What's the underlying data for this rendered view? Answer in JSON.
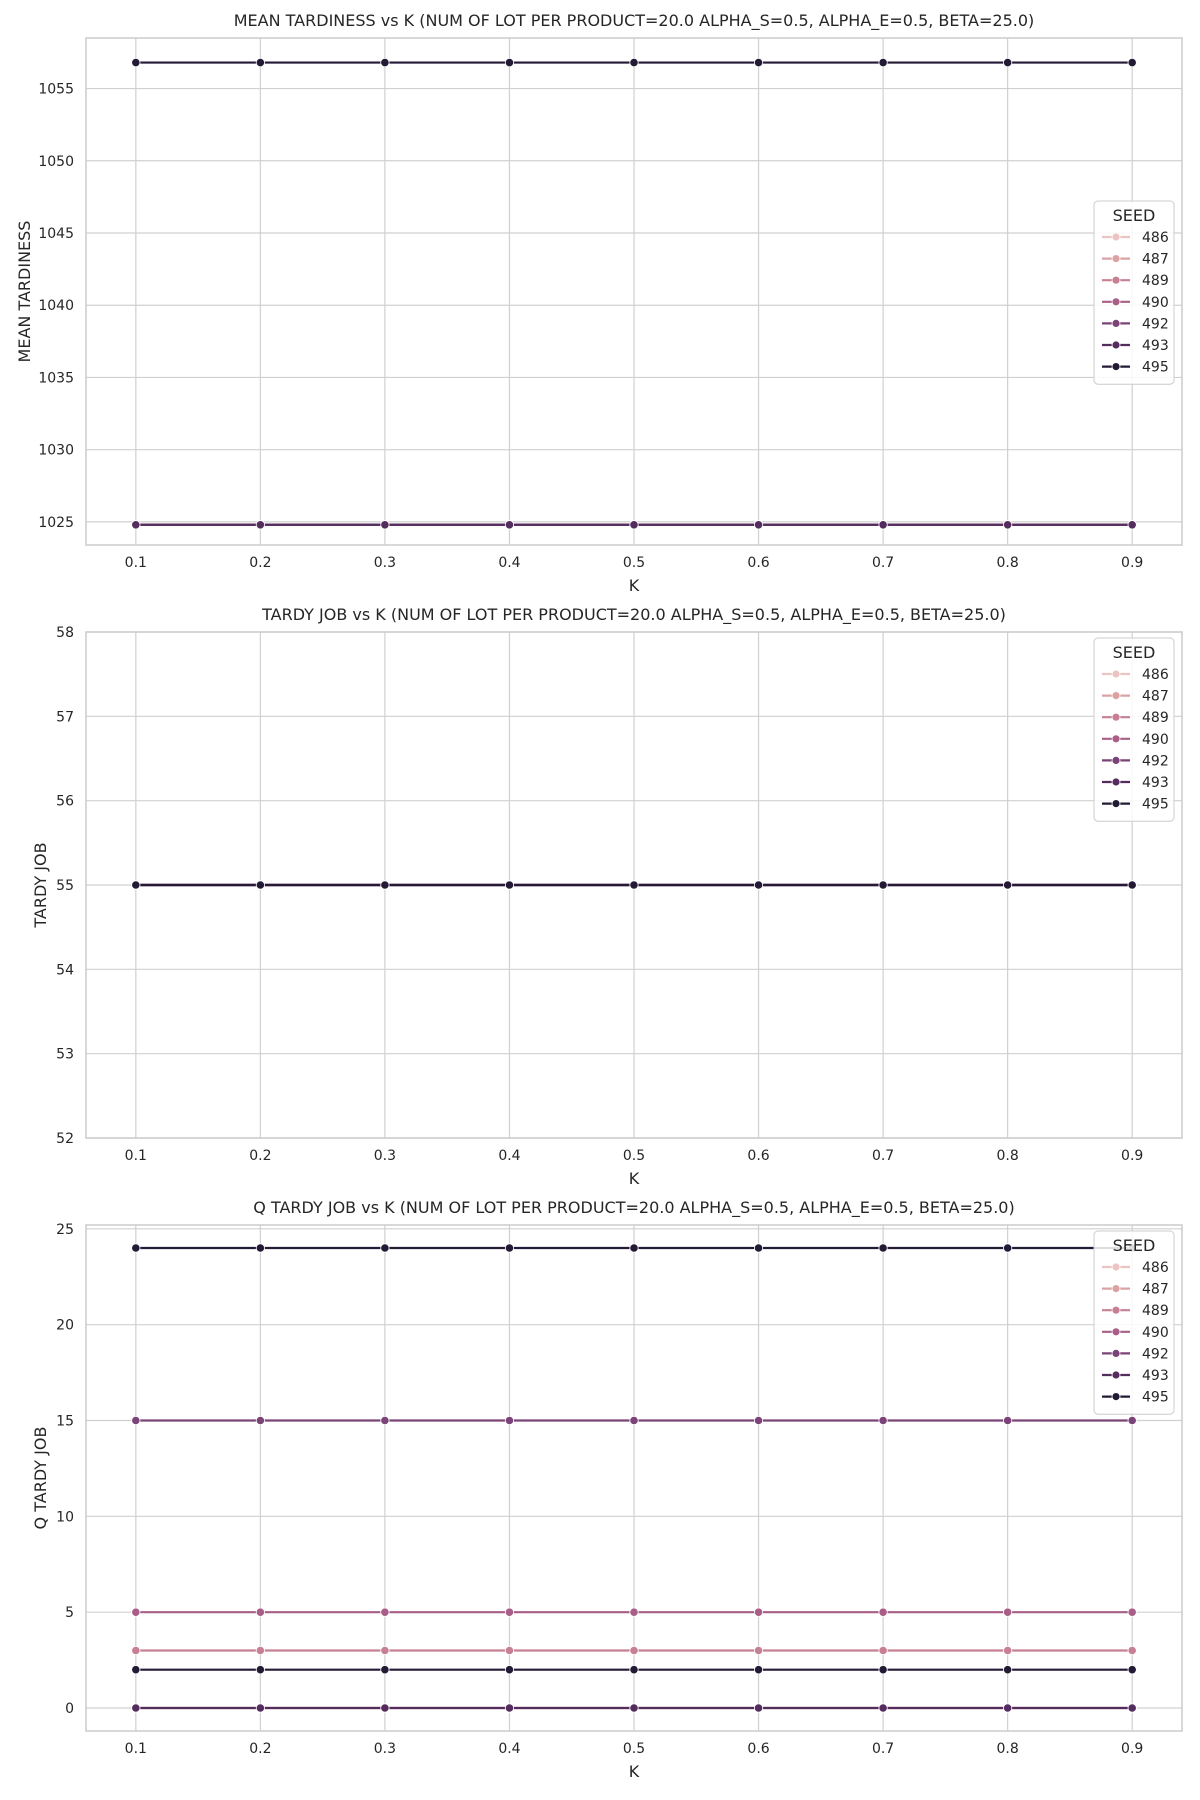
{
  "colors": {
    "background": "#ffffff",
    "grid": "#d0d0d0",
    "spine": "#cccccc",
    "text": "#262626",
    "seeds": {
      "486": "#ecc5c2",
      "487": "#dba2a4",
      "489": "#c77f93",
      "490": "#a85e86",
      "492": "#7b4378",
      "493": "#552c5e",
      "495": "#231a36"
    }
  },
  "chart_data": [
    {
      "type": "line",
      "title": "MEAN TARDINESS vs K (NUM OF LOT PER PRODUCT=20.0 ALPHA_S=0.5, ALPHA_E=0.5, BETA=25.0)",
      "xlabel": "K",
      "ylabel": "MEAN TARDINESS",
      "x": [
        0.1,
        0.2,
        0.3,
        0.4,
        0.5,
        0.6,
        0.7,
        0.8,
        0.9
      ],
      "x_ticks": [
        "0.1",
        "0.2",
        "0.3",
        "0.4",
        "0.5",
        "0.6",
        "0.7",
        "0.8",
        "0.9"
      ],
      "y_ticks": [
        1025,
        1030,
        1035,
        1040,
        1045,
        1050,
        1055
      ],
      "ylim": [
        1023.4,
        1058.5
      ],
      "xlim": [
        0.06,
        0.94
      ],
      "grid": true,
      "legend": {
        "title": "SEED",
        "placement": "center-right"
      },
      "series": [
        {
          "name": "486",
          "values": [
            1024.8,
            1024.8,
            1024.8,
            1024.8,
            1024.8,
            1024.8,
            1024.8,
            1024.8,
            1024.8
          ]
        },
        {
          "name": "487",
          "values": [
            1024.8,
            1024.8,
            1024.8,
            1024.8,
            1024.8,
            1024.8,
            1024.8,
            1024.8,
            1024.8
          ]
        },
        {
          "name": "489",
          "values": [
            1024.8,
            1024.8,
            1024.8,
            1024.8,
            1024.8,
            1024.8,
            1024.8,
            1024.8,
            1024.8
          ]
        },
        {
          "name": "490",
          "values": [
            1024.8,
            1024.8,
            1024.8,
            1024.8,
            1024.8,
            1024.8,
            1024.8,
            1024.8,
            1024.8
          ]
        },
        {
          "name": "492",
          "values": [
            1024.8,
            1024.8,
            1024.8,
            1024.8,
            1024.8,
            1024.8,
            1024.8,
            1024.8,
            1024.8
          ]
        },
        {
          "name": "493",
          "values": [
            1024.8,
            1024.8,
            1024.8,
            1024.8,
            1024.8,
            1024.8,
            1024.8,
            1024.8,
            1024.8
          ]
        },
        {
          "name": "495",
          "values": [
            1056.8,
            1056.8,
            1056.8,
            1056.8,
            1056.8,
            1056.8,
            1056.8,
            1056.8,
            1056.8
          ]
        }
      ]
    },
    {
      "type": "line",
      "title": "TARDY JOB vs K (NUM OF LOT PER PRODUCT=20.0 ALPHA_S=0.5, ALPHA_E=0.5, BETA=25.0)",
      "xlabel": "K",
      "ylabel": "TARDY JOB",
      "x": [
        0.1,
        0.2,
        0.3,
        0.4,
        0.5,
        0.6,
        0.7,
        0.8,
        0.9
      ],
      "x_ticks": [
        "0.1",
        "0.2",
        "0.3",
        "0.4",
        "0.5",
        "0.6",
        "0.7",
        "0.8",
        "0.9"
      ],
      "y_ticks": [
        52,
        53,
        54,
        55,
        56,
        57,
        58
      ],
      "ylim": [
        52,
        58
      ],
      "xlim": [
        0.06,
        0.94
      ],
      "grid": true,
      "legend": {
        "title": "SEED",
        "placement": "top-right"
      },
      "series": [
        {
          "name": "486",
          "values": [
            55,
            55,
            55,
            55,
            55,
            55,
            55,
            55,
            55
          ]
        },
        {
          "name": "487",
          "values": [
            55,
            55,
            55,
            55,
            55,
            55,
            55,
            55,
            55
          ]
        },
        {
          "name": "489",
          "values": [
            55,
            55,
            55,
            55,
            55,
            55,
            55,
            55,
            55
          ]
        },
        {
          "name": "490",
          "values": [
            55,
            55,
            55,
            55,
            55,
            55,
            55,
            55,
            55
          ]
        },
        {
          "name": "492",
          "values": [
            55,
            55,
            55,
            55,
            55,
            55,
            55,
            55,
            55
          ]
        },
        {
          "name": "493",
          "values": [
            55,
            55,
            55,
            55,
            55,
            55,
            55,
            55,
            55
          ]
        },
        {
          "name": "495",
          "values": [
            55,
            55,
            55,
            55,
            55,
            55,
            55,
            55,
            55
          ]
        }
      ]
    },
    {
      "type": "line",
      "title": "Q TARDY JOB vs K (NUM OF LOT PER PRODUCT=20.0 ALPHA_S=0.5, ALPHA_E=0.5, BETA=25.0)",
      "xlabel": "K",
      "ylabel": "Q TARDY JOB",
      "x": [
        0.1,
        0.2,
        0.3,
        0.4,
        0.5,
        0.6,
        0.7,
        0.8,
        0.9
      ],
      "x_ticks": [
        "0.1",
        "0.2",
        "0.3",
        "0.4",
        "0.5",
        "0.6",
        "0.7",
        "0.8",
        "0.9"
      ],
      "y_ticks": [
        0,
        5,
        10,
        15,
        20,
        25
      ],
      "ylim": [
        -1.2,
        25.2
      ],
      "xlim": [
        0.06,
        0.94
      ],
      "grid": true,
      "legend": {
        "title": "SEED",
        "placement": "top-right"
      },
      "series": [
        {
          "name": "486",
          "values": [
            0,
            0,
            0,
            0,
            0,
            0,
            0,
            0,
            0
          ]
        },
        {
          "name": "487",
          "values": [
            0,
            0,
            0,
            0,
            0,
            0,
            0,
            0,
            0
          ]
        },
        {
          "name": "489",
          "values": [
            3,
            3,
            3,
            3,
            3,
            3,
            3,
            3,
            3
          ]
        },
        {
          "name": "490",
          "values": [
            5,
            5,
            5,
            5,
            5,
            5,
            5,
            5,
            5
          ]
        },
        {
          "name": "492",
          "values": [
            15,
            15,
            15,
            15,
            15,
            15,
            15,
            15,
            15
          ]
        },
        {
          "name": "493",
          "values": [
            0,
            0,
            0,
            0,
            0,
            0,
            0,
            0,
            0
          ]
        },
        {
          "name": "495",
          "values": [
            2,
            2,
            2,
            2,
            2,
            2,
            2,
            2,
            2
          ]
        }
      ],
      "series_extra": [
        {
          "name": "495",
          "values": [
            24,
            24,
            24,
            24,
            24,
            24,
            24,
            24,
            24
          ]
        }
      ]
    }
  ]
}
